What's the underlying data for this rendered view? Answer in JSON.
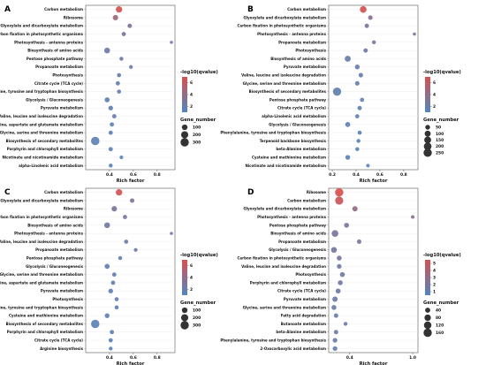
{
  "chart_data": [
    {
      "panel": "A",
      "type": "scatter",
      "xlabel": "Rich factor",
      "xticks": [
        "0.4",
        "0.6",
        "0.8"
      ],
      "xlim": [
        0.2,
        0.95
      ],
      "legend_color_title": "-log10(qvalue)",
      "legend_color_ticks": [
        "6",
        "4",
        "2"
      ],
      "color_range": [
        1,
        7
      ],
      "legend_size_title": "Gene_number",
      "legend_size_values": [
        100,
        200,
        300
      ],
      "terms": [
        {
          "name": "Carbon metabolism",
          "rich_factor": 0.48,
          "neg_log10_q": 6.8,
          "gene_number": 150
        },
        {
          "name": "Ribosome",
          "rich_factor": 0.45,
          "neg_log10_q": 4.5,
          "gene_number": 90
        },
        {
          "name": "Glyoxylate and dicarboxylate metabolism",
          "rich_factor": 0.57,
          "neg_log10_q": 3.2,
          "gene_number": 45
        },
        {
          "name": "Carbon fixation in photosynthetic organisms",
          "rich_factor": 0.52,
          "neg_log10_q": 3.0,
          "gene_number": 40
        },
        {
          "name": "Photosynthesis - antenna proteins",
          "rich_factor": 0.92,
          "neg_log10_q": 2.6,
          "gene_number": 10
        },
        {
          "name": "Biosynthesis of amino acids",
          "rich_factor": 0.38,
          "neg_log10_q": 2.4,
          "gene_number": 110
        },
        {
          "name": "Pentose phosphate pathway",
          "rich_factor": 0.5,
          "neg_log10_q": 2.2,
          "gene_number": 30
        },
        {
          "name": "Propanoate metabolism",
          "rich_factor": 0.58,
          "neg_log10_q": 2.2,
          "gene_number": 25
        },
        {
          "name": "Photosynthesis",
          "rich_factor": 0.48,
          "neg_log10_q": 2.1,
          "gene_number": 35
        },
        {
          "name": "Citrate cycle (TCA cycle)",
          "rich_factor": 0.47,
          "neg_log10_q": 2.0,
          "gene_number": 40
        },
        {
          "name": "Phenylalanine, tyrosine and tryptophan biosynthesis",
          "rich_factor": 0.48,
          "neg_log10_q": 2.0,
          "gene_number": 35
        },
        {
          "name": "Glycolysis / Gluconeogenesis",
          "rich_factor": 0.38,
          "neg_log10_q": 1.9,
          "gene_number": 70
        },
        {
          "name": "Pyruvate metabolism",
          "rich_factor": 0.41,
          "neg_log10_q": 1.8,
          "gene_number": 55
        },
        {
          "name": "Valine, leucine and isoleucine degradation",
          "rich_factor": 0.44,
          "neg_log10_q": 1.8,
          "gene_number": 40
        },
        {
          "name": "Alanine, aspartate and glutamate metabolism",
          "rich_factor": 0.42,
          "neg_log10_q": 1.7,
          "gene_number": 40
        },
        {
          "name": "Glycine, serine and threonine metabolism",
          "rich_factor": 0.41,
          "neg_log10_q": 1.7,
          "gene_number": 40
        },
        {
          "name": "Biosynthesis of secondary metabolites",
          "rich_factor": 0.28,
          "neg_log10_q": 1.6,
          "gene_number": 310
        },
        {
          "name": "Porphyrin and chlorophyll metabolism",
          "rich_factor": 0.41,
          "neg_log10_q": 1.6,
          "gene_number": 40
        },
        {
          "name": "Nicotinate and nicotinamide metabolism",
          "rich_factor": 0.5,
          "neg_log10_q": 1.5,
          "gene_number": 20
        },
        {
          "name": "alpha-Linolenic acid metabolism",
          "rich_factor": 0.41,
          "neg_log10_q": 1.5,
          "gene_number": 30
        }
      ]
    },
    {
      "panel": "B",
      "type": "scatter",
      "xlabel": "Rich factor",
      "xticks": [
        "0.2",
        "0.4",
        "0.6",
        "0.8"
      ],
      "xlim": [
        0.17,
        0.92
      ],
      "legend_color_title": "-log10(qvalue)",
      "legend_color_ticks": [
        "6",
        "4",
        "2"
      ],
      "color_range": [
        1,
        7
      ],
      "legend_size_title": "Gene_number",
      "legend_size_values": [
        50,
        100,
        150,
        200,
        250
      ],
      "terms": [
        {
          "name": "Carbon metabolism",
          "rich_factor": 0.46,
          "neg_log10_q": 6.8,
          "gene_number": 140
        },
        {
          "name": "Glyoxylate and dicarboxylate metabolism",
          "rich_factor": 0.52,
          "neg_log10_q": 3.4,
          "gene_number": 40
        },
        {
          "name": "Carbon fixation in photosynthetic organisms",
          "rich_factor": 0.49,
          "neg_log10_q": 3.1,
          "gene_number": 35
        },
        {
          "name": "Photosynthesis - antenna proteins",
          "rich_factor": 0.89,
          "neg_log10_q": 2.7,
          "gene_number": 10
        },
        {
          "name": "Propanoate metabolism",
          "rich_factor": 0.55,
          "neg_log10_q": 2.6,
          "gene_number": 25
        },
        {
          "name": "Photosynthesis",
          "rich_factor": 0.48,
          "neg_log10_q": 2.4,
          "gene_number": 35
        },
        {
          "name": "Biosynthesis of amino acids",
          "rich_factor": 0.33,
          "neg_log10_q": 2.2,
          "gene_number": 100
        },
        {
          "name": "Pyruvate metabolism",
          "rich_factor": 0.41,
          "neg_log10_q": 2.1,
          "gene_number": 50
        },
        {
          "name": "Valine, leucine and isoleucine degradation",
          "rich_factor": 0.44,
          "neg_log10_q": 2.0,
          "gene_number": 40
        },
        {
          "name": "Glycine, serine and threonine metabolism",
          "rich_factor": 0.41,
          "neg_log10_q": 2.0,
          "gene_number": 40
        },
        {
          "name": "Biosynthesis of secondary metabolites",
          "rich_factor": 0.24,
          "neg_log10_q": 1.9,
          "gene_number": 250
        },
        {
          "name": "Pentose phosphate pathway",
          "rich_factor": 0.45,
          "neg_log10_q": 1.8,
          "gene_number": 30
        },
        {
          "name": "Citrate cycle (TCA cycle)",
          "rich_factor": 0.43,
          "neg_log10_q": 1.8,
          "gene_number": 35
        },
        {
          "name": "alpha-Linolenic acid metabolism",
          "rich_factor": 0.41,
          "neg_log10_q": 1.7,
          "gene_number": 30
        },
        {
          "name": "Glycolysis / Gluconeogenesis",
          "rich_factor": 0.33,
          "neg_log10_q": 1.7,
          "gene_number": 60
        },
        {
          "name": "Phenylalanine, tyrosine and tryptophan biosynthesis",
          "rich_factor": 0.43,
          "neg_log10_q": 1.6,
          "gene_number": 30
        },
        {
          "name": "Terpenoid backbone biosynthesis",
          "rich_factor": 0.42,
          "neg_log10_q": 1.6,
          "gene_number": 25
        },
        {
          "name": "beta-Alanine metabolism",
          "rich_factor": 0.41,
          "neg_log10_q": 1.5,
          "gene_number": 25
        },
        {
          "name": "Cysteine and methionine metabolism",
          "rich_factor": 0.33,
          "neg_log10_q": 1.5,
          "gene_number": 50
        },
        {
          "name": "Nicotinate and nicotinamide metabolism",
          "rich_factor": 0.5,
          "neg_log10_q": 1.4,
          "gene_number": 15
        }
      ]
    },
    {
      "panel": "C",
      "type": "scatter",
      "xlabel": "Rich factor",
      "xticks": [
        "0.4",
        "0.6",
        "0.8"
      ],
      "xlim": [
        0.2,
        0.95
      ],
      "legend_color_title": "-log10(qvalue)",
      "legend_color_ticks": [
        "6",
        "4",
        "2"
      ],
      "color_range": [
        1,
        7
      ],
      "legend_size_title": "Gene_number",
      "legend_size_values": [
        100,
        200,
        300
      ],
      "terms": [
        {
          "name": "Carbon metabolism",
          "rich_factor": 0.48,
          "neg_log10_q": 6.8,
          "gene_number": 150
        },
        {
          "name": "Glyoxylate and dicarboxylate metabolism",
          "rich_factor": 0.59,
          "neg_log10_q": 3.3,
          "gene_number": 45
        },
        {
          "name": "Ribosome",
          "rich_factor": 0.44,
          "neg_log10_q": 3.1,
          "gene_number": 90
        },
        {
          "name": "Carbon fixation in photosynthetic organisms",
          "rich_factor": 0.53,
          "neg_log10_q": 3.0,
          "gene_number": 40
        },
        {
          "name": "Biosynthesis of amino acids",
          "rich_factor": 0.38,
          "neg_log10_q": 2.6,
          "gene_number": 110
        },
        {
          "name": "Photosynthesis - antenna proteins",
          "rich_factor": 0.92,
          "neg_log10_q": 2.5,
          "gene_number": 10
        },
        {
          "name": "Valine, leucine and isoleucine degradation",
          "rich_factor": 0.54,
          "neg_log10_q": 2.3,
          "gene_number": 35
        },
        {
          "name": "Propanoate metabolism",
          "rich_factor": 0.62,
          "neg_log10_q": 2.2,
          "gene_number": 25
        },
        {
          "name": "Pentose phosphate pathway",
          "rich_factor": 0.49,
          "neg_log10_q": 2.1,
          "gene_number": 30
        },
        {
          "name": "Glycolysis / Gluconeogenesis",
          "rich_factor": 0.38,
          "neg_log10_q": 2.0,
          "gene_number": 70
        },
        {
          "name": "Glycine, serine and threonine metabolism",
          "rich_factor": 0.44,
          "neg_log10_q": 1.9,
          "gene_number": 40
        },
        {
          "name": "Alanine, aspartate and glutamate metabolism",
          "rich_factor": 0.43,
          "neg_log10_q": 1.9,
          "gene_number": 40
        },
        {
          "name": "Pyruvate metabolism",
          "rich_factor": 0.41,
          "neg_log10_q": 1.8,
          "gene_number": 55
        },
        {
          "name": "Photosynthesis",
          "rich_factor": 0.46,
          "neg_log10_q": 1.8,
          "gene_number": 35
        },
        {
          "name": "Phenylalanine, tyrosine and tryptophan biosynthesis",
          "rich_factor": 0.46,
          "neg_log10_q": 1.7,
          "gene_number": 35
        },
        {
          "name": "Cysteine and methionine metabolism",
          "rich_factor": 0.38,
          "neg_log10_q": 1.7,
          "gene_number": 60
        },
        {
          "name": "Biosynthesis of secondary metabolites",
          "rich_factor": 0.28,
          "neg_log10_q": 1.6,
          "gene_number": 310
        },
        {
          "name": "Porphyrin and chlorophyll metabolism",
          "rich_factor": 0.42,
          "neg_log10_q": 1.6,
          "gene_number": 40
        },
        {
          "name": "Citrate cycle (TCA cycle)",
          "rich_factor": 0.41,
          "neg_log10_q": 1.5,
          "gene_number": 40
        },
        {
          "name": "Arginine biosynthesis",
          "rich_factor": 0.41,
          "neg_log10_q": 1.5,
          "gene_number": 25
        }
      ]
    },
    {
      "panel": "D",
      "type": "scatter",
      "xlabel": "Rich factor",
      "xticks": [
        "0.4",
        "1.0"
      ],
      "xlim": [
        0.2,
        1.05
      ],
      "legend_color_title": "-log10(qvalue)",
      "legend_color_ticks": [
        "5",
        "4",
        "3",
        "2",
        "1"
      ],
      "color_range": [
        0.5,
        5.5
      ],
      "legend_size_title": "Gene_number",
      "legend_size_values": [
        40,
        80,
        120,
        160
      ],
      "terms": [
        {
          "name": "Ribosome",
          "rich_factor": 0.3,
          "neg_log10_q": 5.5,
          "gene_number": 160
        },
        {
          "name": "Carbon metabolism",
          "rich_factor": 0.3,
          "neg_log10_q": 5.0,
          "gene_number": 150
        },
        {
          "name": "Glyoxylate and dicarboxylate metabolism",
          "rich_factor": 0.45,
          "neg_log10_q": 3.0,
          "gene_number": 45
        },
        {
          "name": "Photosynthesis - antenna proteins",
          "rich_factor": 1.0,
          "neg_log10_q": 2.6,
          "gene_number": 10
        },
        {
          "name": "Pentose phosphate pathway",
          "rich_factor": 0.37,
          "neg_log10_q": 2.3,
          "gene_number": 35
        },
        {
          "name": "Biosynthesis of amino acids",
          "rich_factor": 0.26,
          "neg_log10_q": 2.2,
          "gene_number": 90
        },
        {
          "name": "Propanoate metabolism",
          "rich_factor": 0.49,
          "neg_log10_q": 2.1,
          "gene_number": 25
        },
        {
          "name": "Glycolysis / Gluconeogenesis",
          "rich_factor": 0.25,
          "neg_log10_q": 1.9,
          "gene_number": 60
        },
        {
          "name": "Carbon fixation in photosynthetic organisms",
          "rich_factor": 0.3,
          "neg_log10_q": 1.9,
          "gene_number": 35
        },
        {
          "name": "Valine, leucine and isoleucine degradation",
          "rich_factor": 0.3,
          "neg_log10_q": 1.8,
          "gene_number": 30
        },
        {
          "name": "Photosynthesis",
          "rich_factor": 0.33,
          "neg_log10_q": 1.8,
          "gene_number": 35
        },
        {
          "name": "Porphyrin and chlorophyll metabolism",
          "rich_factor": 0.31,
          "neg_log10_q": 1.7,
          "gene_number": 35
        },
        {
          "name": "Citrate cycle (TCA cycle)",
          "rich_factor": 0.29,
          "neg_log10_q": 1.7,
          "gene_number": 35
        },
        {
          "name": "Pyruvate metabolism",
          "rich_factor": 0.26,
          "neg_log10_q": 1.6,
          "gene_number": 45
        },
        {
          "name": "Glycine, serine and threonine metabolism",
          "rich_factor": 0.25,
          "neg_log10_q": 1.6,
          "gene_number": 35
        },
        {
          "name": "Fatty acid degradation",
          "rich_factor": 0.27,
          "neg_log10_q": 1.5,
          "gene_number": 25
        },
        {
          "name": "Butanoate metabolism",
          "rich_factor": 0.36,
          "neg_log10_q": 1.5,
          "gene_number": 15
        },
        {
          "name": "beta-Alanine metabolism",
          "rich_factor": 0.27,
          "neg_log10_q": 1.4,
          "gene_number": 25
        },
        {
          "name": "Phenylalanine, tyrosine and tryptophan biosynthesis",
          "rich_factor": 0.26,
          "neg_log10_q": 1.4,
          "gene_number": 30
        },
        {
          "name": "2-Oxocarboxylic acid metabolism",
          "rich_factor": 0.26,
          "neg_log10_q": 1.3,
          "gene_number": 30
        }
      ]
    }
  ],
  "colors": {
    "high": "#d6514f",
    "low": "#4f87c2"
  }
}
